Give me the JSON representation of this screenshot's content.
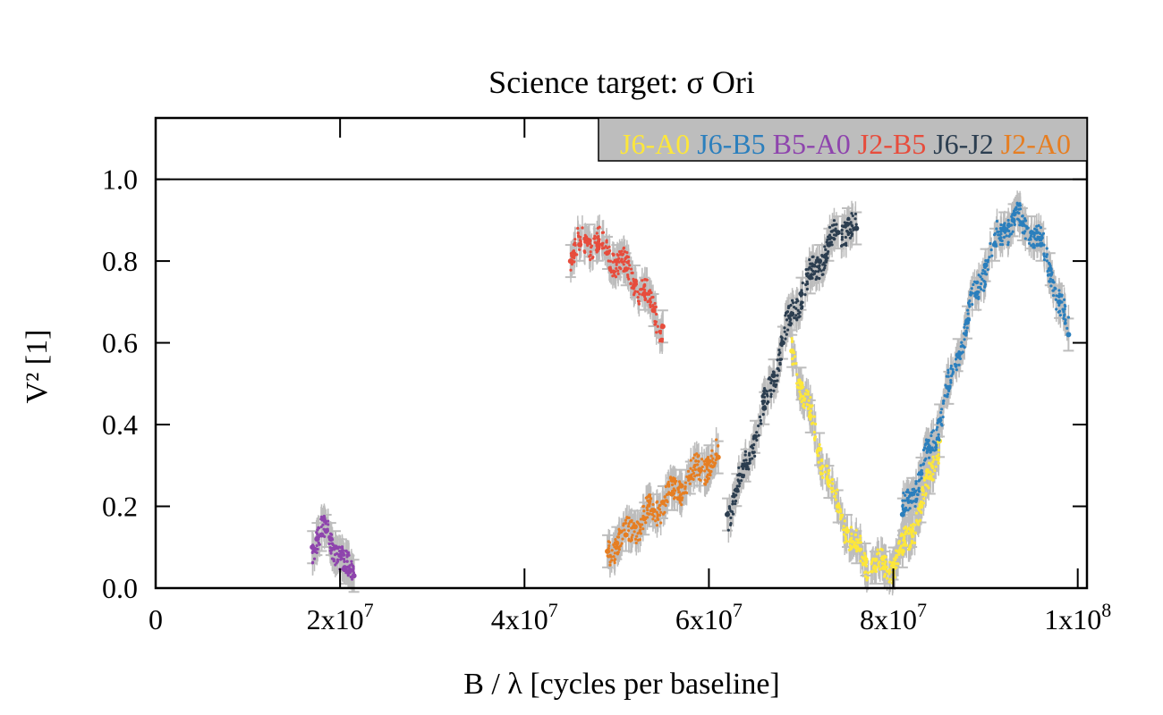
{
  "chart_data": {
    "type": "scatter",
    "title": "Science target: σ Ori",
    "xlabel": "B / λ [cycles per baseline]",
    "ylabel": "V² [1]",
    "xlim": [
      0,
      101000000
    ],
    "ylim": [
      0,
      1.15
    ],
    "x_ticks": [
      0,
      20000000,
      40000000,
      60000000,
      80000000,
      100000000
    ],
    "x_tick_labels": [
      "0",
      "2x10^7",
      "4x10^7",
      "6x10^7",
      "8x10^7",
      "1x10^8"
    ],
    "y_ticks": [
      0.0,
      0.2,
      0.4,
      0.6,
      0.8,
      1.0
    ],
    "y_tick_labels": [
      "0.0",
      "0.2",
      "0.4",
      "0.6",
      "0.8",
      "1.0"
    ],
    "reference_line_y": 1.0,
    "grid": false,
    "legend_position": "top-right",
    "legend_bg": "#bdbdbd",
    "errorbar_color": "#bdbdbd",
    "series": [
      {
        "name": "J6-A0",
        "color": "#fde73a",
        "x": [
          69000000,
          70000000,
          71000000,
          72000000,
          73000000,
          74000000,
          75000000,
          76000000,
          77000000,
          78000000,
          79000000,
          80000000,
          81000000,
          82000000,
          83000000,
          84000000,
          85000000
        ],
        "y": [
          0.58,
          0.5,
          0.42,
          0.34,
          0.26,
          0.2,
          0.14,
          0.1,
          0.07,
          0.05,
          0.05,
          0.06,
          0.09,
          0.14,
          0.2,
          0.27,
          0.36
        ]
      },
      {
        "name": "J6-B5",
        "color": "#2b7fbd",
        "x": [
          81000000,
          82000000,
          83000000,
          84000000,
          85000000,
          86000000,
          87000000,
          88000000,
          89000000,
          90000000,
          91000000,
          92000000,
          93000000,
          94000000,
          95000000,
          96000000,
          97000000,
          98000000,
          99000000
        ],
        "y": [
          0.18,
          0.23,
          0.28,
          0.34,
          0.41,
          0.49,
          0.57,
          0.65,
          0.72,
          0.79,
          0.84,
          0.88,
          0.9,
          0.89,
          0.87,
          0.84,
          0.78,
          0.7,
          0.62
        ]
      },
      {
        "name": "B5-A0",
        "color": "#8e44ad",
        "x": [
          17000000,
          17500000,
          18000000,
          18500000,
          19000000,
          19500000,
          20000000,
          20500000,
          21000000,
          21500000
        ],
        "y": [
          0.1,
          0.12,
          0.13,
          0.14,
          0.12,
          0.1,
          0.08,
          0.05,
          0.04,
          0.03
        ]
      },
      {
        "name": "J2-B5",
        "color": "#e74c3c",
        "x": [
          45000000,
          46000000,
          47000000,
          48000000,
          49000000,
          50000000,
          51000000,
          52000000,
          53000000,
          54000000,
          55000000
        ],
        "y": [
          0.8,
          0.84,
          0.85,
          0.84,
          0.82,
          0.8,
          0.78,
          0.75,
          0.72,
          0.68,
          0.64
        ]
      },
      {
        "name": "J6-J2",
        "color": "#2c3e50",
        "x": [
          62000000,
          63000000,
          64000000,
          65000000,
          66000000,
          67000000,
          68000000,
          69000000,
          70000000,
          71000000,
          72000000,
          73000000,
          74000000,
          75000000,
          76000000
        ],
        "y": [
          0.18,
          0.24,
          0.3,
          0.37,
          0.44,
          0.52,
          0.6,
          0.67,
          0.72,
          0.76,
          0.8,
          0.84,
          0.87,
          0.89,
          0.88
        ]
      },
      {
        "name": "J2-A0",
        "color": "#e67e22",
        "x": [
          49000000,
          50000000,
          51000000,
          52000000,
          53000000,
          54000000,
          55000000,
          56000000,
          57000000,
          58000000,
          59000000,
          60000000,
          61000000
        ],
        "y": [
          0.09,
          0.11,
          0.13,
          0.15,
          0.17,
          0.19,
          0.21,
          0.23,
          0.25,
          0.27,
          0.29,
          0.31,
          0.32
        ]
      }
    ]
  }
}
